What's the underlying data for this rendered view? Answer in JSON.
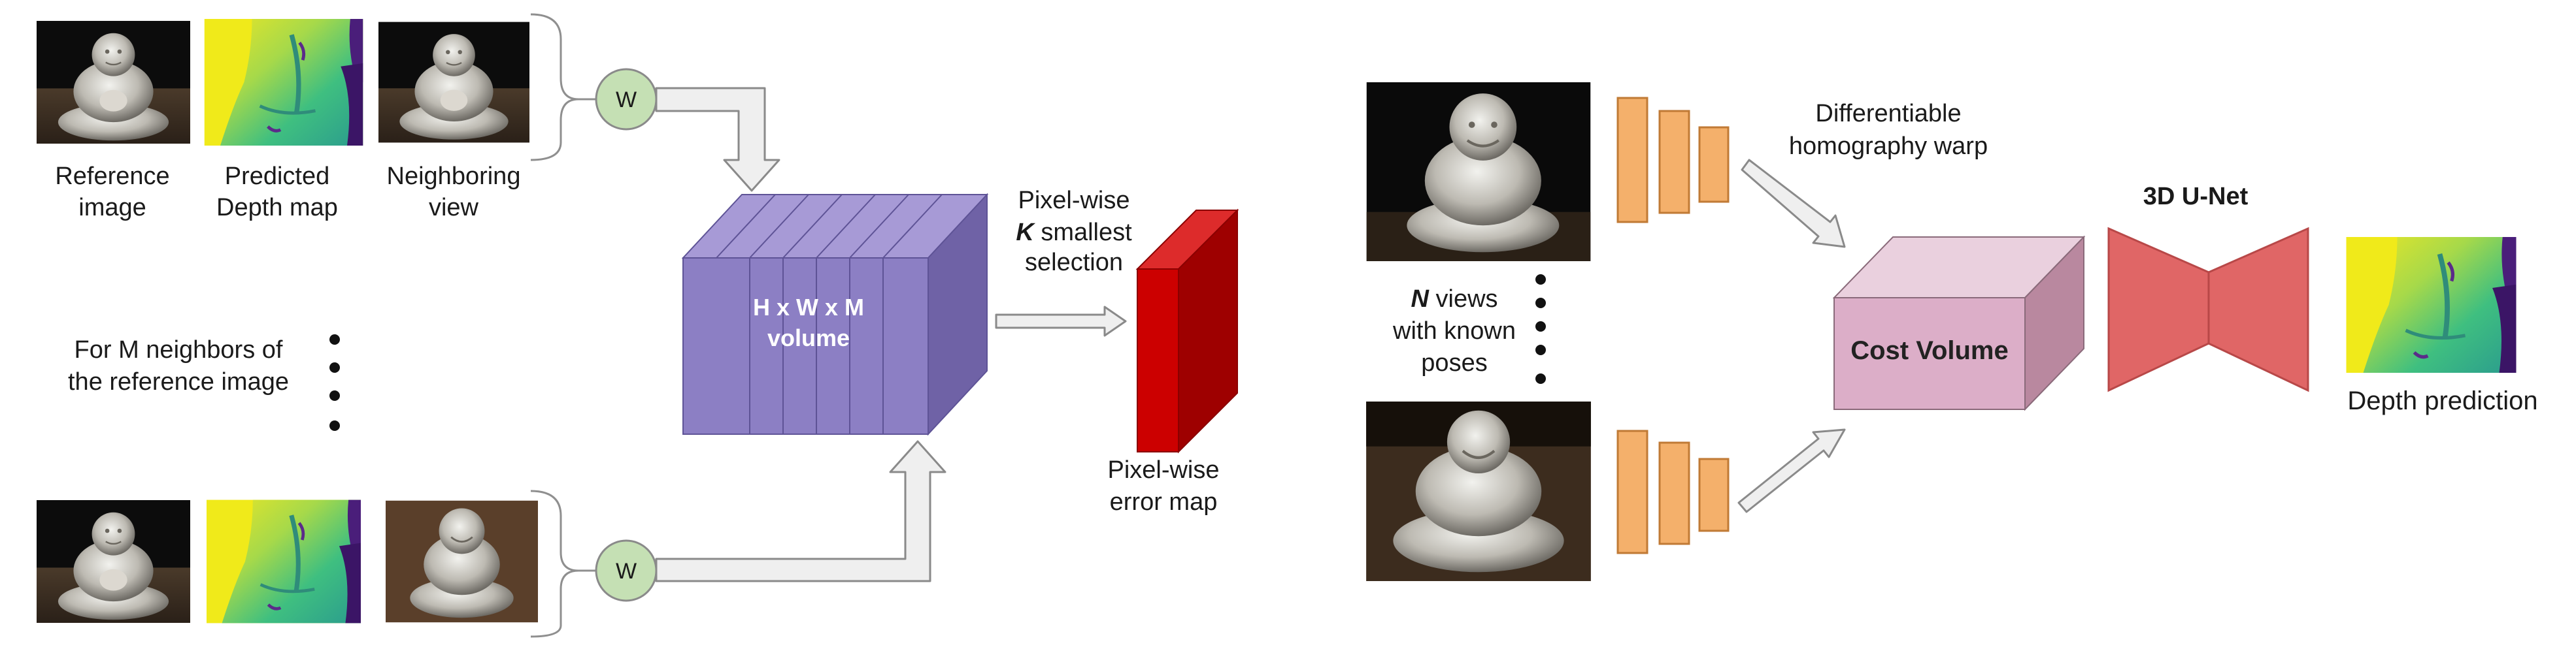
{
  "left_panel": {
    "top_row_labels": {
      "reference": [
        "Reference",
        "image"
      ],
      "predicted": [
        "Predicted",
        "Depth map"
      ],
      "neighboring": [
        "Neighboring",
        "view"
      ]
    },
    "weight_node_label": "W",
    "neighbors_note": [
      "For M neighbors of",
      "the reference image"
    ],
    "volume_label": [
      "H x W x M",
      "volume"
    ],
    "selection_label": {
      "line1": "Pixel-wise",
      "line2_italic": "K",
      "line2_rest": " smallest",
      "line3": "selection"
    },
    "error_map_label": [
      "Pixel-wise",
      "error map"
    ]
  },
  "right_panel": {
    "views_label": {
      "line1_italic": "N",
      "line1_rest": " views",
      "line2": "with known",
      "line3": "poses"
    },
    "warp_label": [
      "Differentiable",
      "homography warp"
    ],
    "cost_volume_label": "Cost Volume",
    "unet_label": "3D U-Net",
    "depth_prediction_label": "Depth prediction"
  },
  "colors": {
    "volume_front": "#8c7fc4",
    "volume_top": "#a79ad6",
    "volume_side": "#6f62a6",
    "error_front": "#cc0000",
    "error_side": "#9e0000",
    "weight_node": "#c5e0b4",
    "feature_bar": "#f4b06b",
    "cost_front": "#dcaec8",
    "cost_top": "#ead0de",
    "cost_side": "#b9889f",
    "unet": "#e06666",
    "arrow_fill": "#efefef",
    "arrow_stroke": "#8a8a8a"
  },
  "icons": [
    "buddha-photo",
    "depth-map-thumbnail",
    "bracket",
    "arrow",
    "vertical-ellipsis"
  ]
}
